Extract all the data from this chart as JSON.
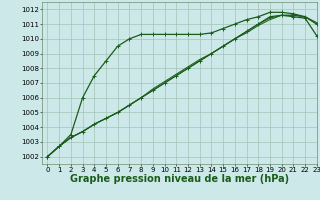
{
  "title": "Graphe pression niveau de la mer (hPa)",
  "bg_color": "#cce8e8",
  "grid_color": "#99bbaa",
  "line_color": "#1a5c1a",
  "xlim": [
    -0.5,
    23
  ],
  "ylim": [
    1001.5,
    1012.5
  ],
  "xticks": [
    0,
    1,
    2,
    3,
    4,
    5,
    6,
    7,
    8,
    9,
    10,
    11,
    12,
    13,
    14,
    15,
    16,
    17,
    18,
    19,
    20,
    21,
    22,
    23
  ],
  "yticks": [
    1002,
    1003,
    1004,
    1005,
    1006,
    1007,
    1008,
    1009,
    1010,
    1011,
    1012
  ],
  "series": [
    {
      "y": [
        1002.0,
        1002.7,
        1003.5,
        1006.0,
        1007.5,
        1008.5,
        1009.5,
        1010.0,
        1010.3,
        1010.3,
        1010.3,
        1010.3,
        1010.3,
        1010.3,
        1010.4,
        1010.7,
        1011.0,
        1011.3,
        1011.5,
        1011.8,
        1011.8,
        1011.7,
        1011.5,
        1011.0
      ],
      "marker": true,
      "lw": 0.9
    },
    {
      "y": [
        1002.0,
        1002.7,
        1003.3,
        1003.7,
        1004.2,
        1004.6,
        1005.0,
        1005.5,
        1006.0,
        1006.6,
        1007.1,
        1007.6,
        1008.1,
        1008.6,
        1009.0,
        1009.5,
        1010.0,
        1010.4,
        1010.9,
        1011.3,
        1011.6,
        1011.6,
        1011.5,
        1011.1
      ],
      "marker": false,
      "lw": 0.7
    },
    {
      "y": [
        1002.0,
        1002.7,
        1003.3,
        1003.7,
        1004.2,
        1004.6,
        1005.0,
        1005.5,
        1006.0,
        1006.5,
        1007.0,
        1007.5,
        1008.0,
        1008.5,
        1009.0,
        1009.5,
        1010.0,
        1010.5,
        1011.0,
        1011.4,
        1011.6,
        1011.6,
        1011.5,
        1011.0
      ],
      "marker": false,
      "lw": 0.7
    },
    {
      "y": [
        1002.0,
        1002.7,
        1003.3,
        1003.7,
        1004.2,
        1004.6,
        1005.0,
        1005.5,
        1006.0,
        1006.5,
        1007.0,
        1007.5,
        1008.0,
        1008.5,
        1009.0,
        1009.5,
        1010.0,
        1010.5,
        1011.0,
        1011.5,
        1011.6,
        1011.5,
        1011.4,
        1010.2
      ],
      "marker": true,
      "lw": 0.9
    }
  ],
  "title_fontsize": 7,
  "tick_fontsize": 5
}
